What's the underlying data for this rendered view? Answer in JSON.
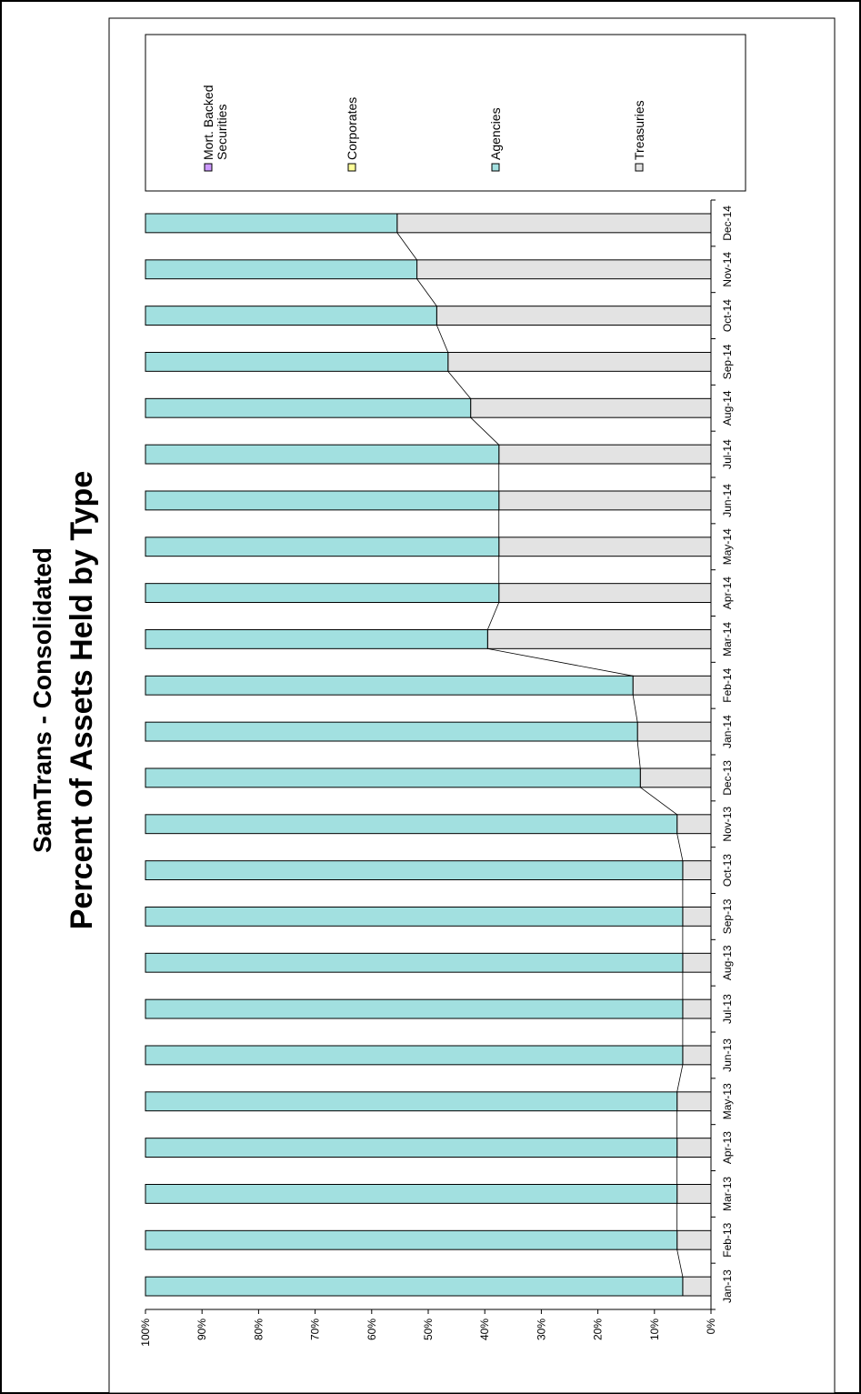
{
  "chart_data": {
    "type": "bar",
    "stacked": true,
    "percent": true,
    "orientation": "rotated-90",
    "title": "SamTrans - Consolidated",
    "subtitle": "Percent of Assets Held by Type",
    "categories": [
      "Jan-13",
      "Feb-13",
      "Mar-13",
      "Apr-13",
      "May-13",
      "Jun-13",
      "Jul-13",
      "Aug-13",
      "Sep-13",
      "Oct-13",
      "Nov-13",
      "Dec-13",
      "Jan-14",
      "Feb-14",
      "Mar-14",
      "Apr-14",
      "May-14",
      "Jun-14",
      "Jul-14",
      "Aug-14",
      "Sep-14",
      "Oct-14",
      "Nov-14",
      "Dec-14"
    ],
    "ylim": [
      0,
      100
    ],
    "yticks": [
      "0%",
      "10%",
      "20%",
      "30%",
      "40%",
      "50%",
      "60%",
      "70%",
      "80%",
      "90%",
      "100%"
    ],
    "series": [
      {
        "name": "Treasuries",
        "color": "#e3e3e3",
        "values": [
          5,
          6,
          6,
          6,
          6,
          5,
          5,
          5,
          5,
          5,
          6,
          12.5,
          13,
          13.8,
          39.5,
          37.5,
          37.5,
          37.5,
          37.5,
          42.5,
          46.5,
          48.5,
          52,
          55.5
        ]
      },
      {
        "name": "Agencies",
        "color": "#a2e0e0",
        "values": [
          95,
          94,
          94,
          94,
          94,
          95,
          95,
          95,
          95,
          95,
          94,
          87.5,
          87,
          86.2,
          60.5,
          62.5,
          62.5,
          62.5,
          62.5,
          57.5,
          53.5,
          51.5,
          48,
          44.5
        ]
      },
      {
        "name": "Corporates",
        "color": "#ffff99",
        "values": [
          0,
          0,
          0,
          0,
          0,
          0,
          0,
          0,
          0,
          0,
          0,
          0,
          0,
          0,
          0,
          0,
          0,
          0,
          0,
          0,
          0,
          0,
          0,
          0
        ]
      },
      {
        "name": "Mort. Backed Securities",
        "color": "#cc99ff",
        "values": [
          0,
          0,
          0,
          0,
          0,
          0,
          0,
          0,
          0,
          0,
          0,
          0,
          0,
          0,
          0,
          0,
          0,
          0,
          0,
          0,
          0,
          0,
          0,
          0
        ]
      }
    ],
    "legend": [
      "Mort. Backed Securities",
      "Corporates",
      "Agencies",
      "Treasuries"
    ],
    "legend_placement": "right",
    "grid": false,
    "series_lines": true
  }
}
